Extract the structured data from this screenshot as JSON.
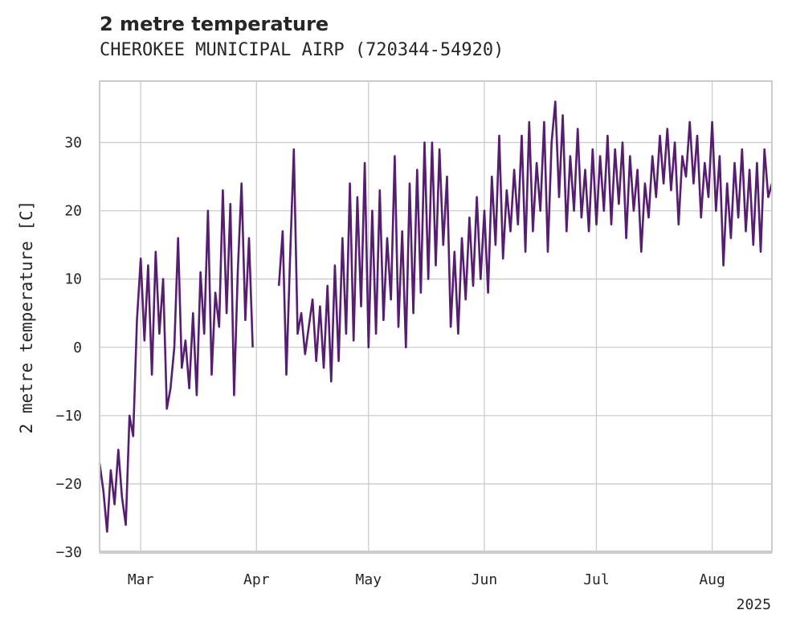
{
  "chart_data": {
    "type": "line",
    "title": "2 metre temperature",
    "subtitle": "CHEROKEE MUNICIPAL AIRP (720344-54920)",
    "xlabel": "",
    "ylabel": "2 metre temperature [C]",
    "year_label": "2025",
    "xlim": [
      "2025-02-18",
      "2025-08-17"
    ],
    "ylim": [
      -30,
      39
    ],
    "grid": true,
    "line_color": "#561d70",
    "x_ticks": [
      {
        "label": "Mar",
        "date": "2025-03-01"
      },
      {
        "label": "Apr",
        "date": "2025-04-01"
      },
      {
        "label": "May",
        "date": "2025-05-01"
      },
      {
        "label": "Jun",
        "date": "2025-06-01"
      },
      {
        "label": "Jul",
        "date": "2025-07-01"
      },
      {
        "label": "Aug",
        "date": "2025-08-01"
      }
    ],
    "y_ticks": [
      -30,
      -20,
      -10,
      0,
      10,
      20,
      30
    ],
    "series": [
      {
        "values": [
          {
            "x": "2025-02-18",
            "y": -17
          },
          {
            "x": "2025-02-19",
            "y": -21
          },
          {
            "x": "2025-02-20",
            "y": -27
          },
          {
            "x": "2025-02-21",
            "y": -18
          },
          {
            "x": "2025-02-22",
            "y": -23
          },
          {
            "x": "2025-02-23",
            "y": -15
          },
          {
            "x": "2025-02-24",
            "y": -22
          },
          {
            "x": "2025-02-25",
            "y": -26
          },
          {
            "x": "2025-02-26",
            "y": -10
          },
          {
            "x": "2025-02-27",
            "y": -13
          },
          {
            "x": "2025-02-28",
            "y": 4
          },
          {
            "x": "2025-03-01",
            "y": 13
          },
          {
            "x": "2025-03-02",
            "y": 1
          },
          {
            "x": "2025-03-03",
            "y": 12
          },
          {
            "x": "2025-03-04",
            "y": -4
          },
          {
            "x": "2025-03-05",
            "y": 14
          },
          {
            "x": "2025-03-06",
            "y": 2
          },
          {
            "x": "2025-03-07",
            "y": 10
          },
          {
            "x": "2025-03-08",
            "y": -9
          },
          {
            "x": "2025-03-09",
            "y": -6
          },
          {
            "x": "2025-03-10",
            "y": 0
          },
          {
            "x": "2025-03-11",
            "y": 16
          },
          {
            "x": "2025-03-12",
            "y": -3
          },
          {
            "x": "2025-03-13",
            "y": 1
          },
          {
            "x": "2025-03-14",
            "y": -6
          },
          {
            "x": "2025-03-15",
            "y": 5
          },
          {
            "x": "2025-03-16",
            "y": -7
          },
          {
            "x": "2025-03-17",
            "y": 11
          },
          {
            "x": "2025-03-18",
            "y": 2
          },
          {
            "x": "2025-03-19",
            "y": 20
          },
          {
            "x": "2025-03-20",
            "y": -4
          },
          {
            "x": "2025-03-21",
            "y": 8
          },
          {
            "x": "2025-03-22",
            "y": 3
          },
          {
            "x": "2025-03-23",
            "y": 23
          },
          {
            "x": "2025-03-24",
            "y": 5
          },
          {
            "x": "2025-03-25",
            "y": 21
          },
          {
            "x": "2025-03-26",
            "y": -7
          },
          {
            "x": "2025-03-27",
            "y": 11
          },
          {
            "x": "2025-03-28",
            "y": 24
          },
          {
            "x": "2025-03-29",
            "y": 4
          },
          {
            "x": "2025-03-30",
            "y": 16
          },
          {
            "x": "2025-03-31",
            "y": 0
          },
          {
            "x": "2025-04-07",
            "y": 9
          },
          {
            "x": "2025-04-08",
            "y": 17
          },
          {
            "x": "2025-04-09",
            "y": -4
          },
          {
            "x": "2025-04-10",
            "y": 13
          },
          {
            "x": "2025-04-11",
            "y": 29
          },
          {
            "x": "2025-04-12",
            "y": 2
          },
          {
            "x": "2025-04-13",
            "y": 5
          },
          {
            "x": "2025-04-14",
            "y": -1
          },
          {
            "x": "2025-04-15",
            "y": 3
          },
          {
            "x": "2025-04-16",
            "y": 7
          },
          {
            "x": "2025-04-17",
            "y": -2
          },
          {
            "x": "2025-04-18",
            "y": 6
          },
          {
            "x": "2025-04-19",
            "y": -3
          },
          {
            "x": "2025-04-20",
            "y": 9
          },
          {
            "x": "2025-04-21",
            "y": -5
          },
          {
            "x": "2025-04-22",
            "y": 12
          },
          {
            "x": "2025-04-23",
            "y": -2
          },
          {
            "x": "2025-04-24",
            "y": 16
          },
          {
            "x": "2025-04-25",
            "y": 2
          },
          {
            "x": "2025-04-26",
            "y": 24
          },
          {
            "x": "2025-04-27",
            "y": 1
          },
          {
            "x": "2025-04-28",
            "y": 22
          },
          {
            "x": "2025-04-29",
            "y": 6
          },
          {
            "x": "2025-04-30",
            "y": 27
          },
          {
            "x": "2025-05-01",
            "y": 0
          },
          {
            "x": "2025-05-02",
            "y": 20
          },
          {
            "x": "2025-05-03",
            "y": 2
          },
          {
            "x": "2025-05-04",
            "y": 23
          },
          {
            "x": "2025-05-05",
            "y": 4
          },
          {
            "x": "2025-05-06",
            "y": 16
          },
          {
            "x": "2025-05-07",
            "y": 7
          },
          {
            "x": "2025-05-08",
            "y": 28
          },
          {
            "x": "2025-05-09",
            "y": 3
          },
          {
            "x": "2025-05-10",
            "y": 17
          },
          {
            "x": "2025-05-11",
            "y": 0
          },
          {
            "x": "2025-05-12",
            "y": 24
          },
          {
            "x": "2025-05-13",
            "y": 5
          },
          {
            "x": "2025-05-14",
            "y": 26
          },
          {
            "x": "2025-05-15",
            "y": 8
          },
          {
            "x": "2025-05-16",
            "y": 30
          },
          {
            "x": "2025-05-17",
            "y": 10
          },
          {
            "x": "2025-05-18",
            "y": 30
          },
          {
            "x": "2025-05-19",
            "y": 12
          },
          {
            "x": "2025-05-20",
            "y": 29
          },
          {
            "x": "2025-05-21",
            "y": 15
          },
          {
            "x": "2025-05-22",
            "y": 25
          },
          {
            "x": "2025-05-23",
            "y": 3
          },
          {
            "x": "2025-05-24",
            "y": 14
          },
          {
            "x": "2025-05-25",
            "y": 2
          },
          {
            "x": "2025-05-26",
            "y": 16
          },
          {
            "x": "2025-05-27",
            "y": 7
          },
          {
            "x": "2025-05-28",
            "y": 19
          },
          {
            "x": "2025-05-29",
            "y": 9
          },
          {
            "x": "2025-05-30",
            "y": 22
          },
          {
            "x": "2025-05-31",
            "y": 10
          },
          {
            "x": "2025-06-01",
            "y": 20
          },
          {
            "x": "2025-06-02",
            "y": 8
          },
          {
            "x": "2025-06-03",
            "y": 25
          },
          {
            "x": "2025-06-04",
            "y": 15
          },
          {
            "x": "2025-06-05",
            "y": 31
          },
          {
            "x": "2025-06-06",
            "y": 13
          },
          {
            "x": "2025-06-07",
            "y": 23
          },
          {
            "x": "2025-06-08",
            "y": 17
          },
          {
            "x": "2025-06-09",
            "y": 26
          },
          {
            "x": "2025-06-10",
            "y": 18
          },
          {
            "x": "2025-06-11",
            "y": 31
          },
          {
            "x": "2025-06-12",
            "y": 14
          },
          {
            "x": "2025-06-13",
            "y": 33
          },
          {
            "x": "2025-06-14",
            "y": 17
          },
          {
            "x": "2025-06-15",
            "y": 27
          },
          {
            "x": "2025-06-16",
            "y": 20
          },
          {
            "x": "2025-06-17",
            "y": 33
          },
          {
            "x": "2025-06-18",
            "y": 14
          },
          {
            "x": "2025-06-19",
            "y": 30
          },
          {
            "x": "2025-06-20",
            "y": 36
          },
          {
            "x": "2025-06-21",
            "y": 22
          },
          {
            "x": "2025-06-22",
            "y": 34
          },
          {
            "x": "2025-06-23",
            "y": 17
          },
          {
            "x": "2025-06-24",
            "y": 28
          },
          {
            "x": "2025-06-25",
            "y": 20
          },
          {
            "x": "2025-06-26",
            "y": 32
          },
          {
            "x": "2025-06-27",
            "y": 19
          },
          {
            "x": "2025-06-28",
            "y": 26
          },
          {
            "x": "2025-06-29",
            "y": 17
          },
          {
            "x": "2025-06-30",
            "y": 29
          },
          {
            "x": "2025-07-01",
            "y": 18
          },
          {
            "x": "2025-07-02",
            "y": 28
          },
          {
            "x": "2025-07-03",
            "y": 20
          },
          {
            "x": "2025-07-04",
            "y": 31
          },
          {
            "x": "2025-07-05",
            "y": 18
          },
          {
            "x": "2025-07-06",
            "y": 29
          },
          {
            "x": "2025-07-07",
            "y": 21
          },
          {
            "x": "2025-07-08",
            "y": 30
          },
          {
            "x": "2025-07-09",
            "y": 16
          },
          {
            "x": "2025-07-10",
            "y": 28
          },
          {
            "x": "2025-07-11",
            "y": 20
          },
          {
            "x": "2025-07-12",
            "y": 26
          },
          {
            "x": "2025-07-13",
            "y": 14
          },
          {
            "x": "2025-07-14",
            "y": 24
          },
          {
            "x": "2025-07-15",
            "y": 19
          },
          {
            "x": "2025-07-16",
            "y": 28
          },
          {
            "x": "2025-07-17",
            "y": 22
          },
          {
            "x": "2025-07-18",
            "y": 31
          },
          {
            "x": "2025-07-19",
            "y": 24
          },
          {
            "x": "2025-07-20",
            "y": 32
          },
          {
            "x": "2025-07-21",
            "y": 23
          },
          {
            "x": "2025-07-22",
            "y": 30
          },
          {
            "x": "2025-07-23",
            "y": 18
          },
          {
            "x": "2025-07-24",
            "y": 28
          },
          {
            "x": "2025-07-25",
            "y": 25
          },
          {
            "x": "2025-07-26",
            "y": 33
          },
          {
            "x": "2025-07-27",
            "y": 24
          },
          {
            "x": "2025-07-28",
            "y": 31
          },
          {
            "x": "2025-07-29",
            "y": 19
          },
          {
            "x": "2025-07-30",
            "y": 27
          },
          {
            "x": "2025-07-31",
            "y": 22
          },
          {
            "x": "2025-08-01",
            "y": 33
          },
          {
            "x": "2025-08-02",
            "y": 20
          },
          {
            "x": "2025-08-03",
            "y": 28
          },
          {
            "x": "2025-08-04",
            "y": 12
          },
          {
            "x": "2025-08-05",
            "y": 24
          },
          {
            "x": "2025-08-06",
            "y": 16
          },
          {
            "x": "2025-08-07",
            "y": 27
          },
          {
            "x": "2025-08-08",
            "y": 19
          },
          {
            "x": "2025-08-09",
            "y": 29
          },
          {
            "x": "2025-08-10",
            "y": 17
          },
          {
            "x": "2025-08-11",
            "y": 26
          },
          {
            "x": "2025-08-12",
            "y": 15
          },
          {
            "x": "2025-08-13",
            "y": 27
          },
          {
            "x": "2025-08-14",
            "y": 14
          },
          {
            "x": "2025-08-15",
            "y": 29
          },
          {
            "x": "2025-08-16",
            "y": 22
          },
          {
            "x": "2025-08-17",
            "y": 24
          }
        ]
      }
    ]
  }
}
